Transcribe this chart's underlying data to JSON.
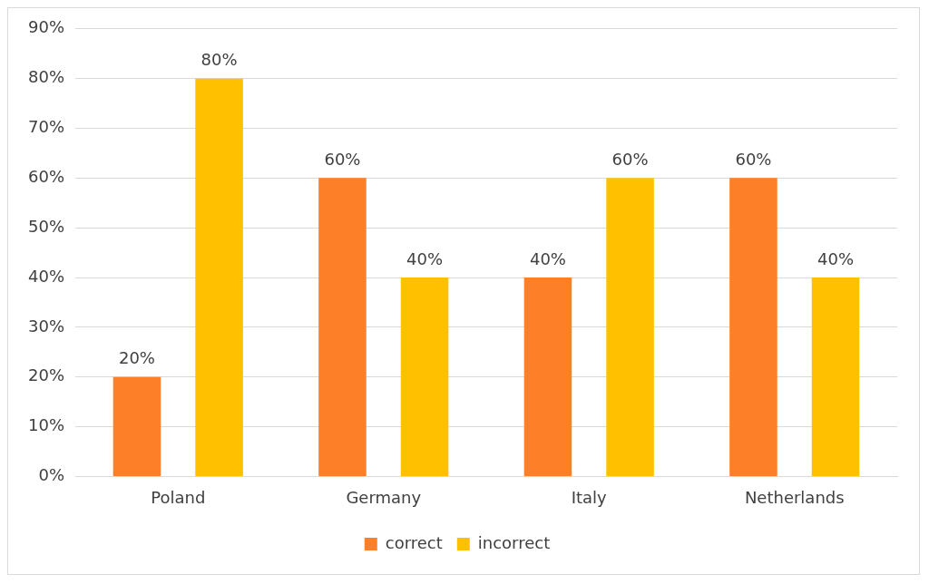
{
  "chart_data": {
    "type": "bar",
    "categories": [
      "Poland",
      "Germany",
      "Italy",
      "Netherlands"
    ],
    "series": [
      {
        "name": "correct",
        "color": "#fd7f27",
        "values": [
          20,
          60,
          40,
          60
        ],
        "value_labels": [
          "20%",
          "60%",
          "40%",
          "60%"
        ]
      },
      {
        "name": "incorrect",
        "color": "#ffc000",
        "values": [
          80,
          40,
          60,
          40
        ],
        "value_labels": [
          "80%",
          "40%",
          "60%",
          "40%"
        ]
      }
    ],
    "ylim": [
      0,
      90
    ],
    "yticks": [
      {
        "value": 0,
        "label": "0%"
      },
      {
        "value": 10,
        "label": "10%"
      },
      {
        "value": 20,
        "label": "20%"
      },
      {
        "value": 30,
        "label": "30%"
      },
      {
        "value": 40,
        "label": "40%"
      },
      {
        "value": 50,
        "label": "50%"
      },
      {
        "value": 60,
        "label": "60%"
      },
      {
        "value": 70,
        "label": "70%"
      },
      {
        "value": 80,
        "label": "80%"
      },
      {
        "value": 90,
        "label": "90%"
      }
    ],
    "grid": "y",
    "legend": "bottom"
  }
}
